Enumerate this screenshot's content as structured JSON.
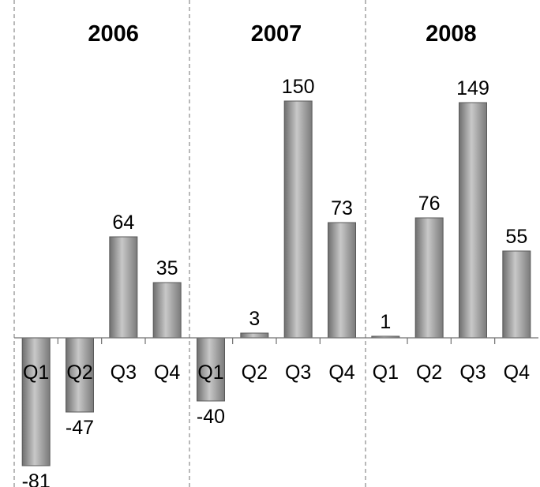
{
  "chart_data": {
    "type": "bar",
    "groups": [
      "2006",
      "2007",
      "2008"
    ],
    "categories": [
      "Q1",
      "Q2",
      "Q3",
      "Q4"
    ],
    "series": [
      {
        "group": "2006",
        "values": [
          -81,
          -47,
          64,
          35
        ]
      },
      {
        "group": "2007",
        "values": [
          -40,
          3,
          150,
          73
        ]
      },
      {
        "group": "2008",
        "values": [
          1,
          76,
          149,
          55
        ]
      }
    ],
    "ylim": [
      -81,
      150
    ],
    "grid": false,
    "bar_color": "#9a9a9a"
  }
}
